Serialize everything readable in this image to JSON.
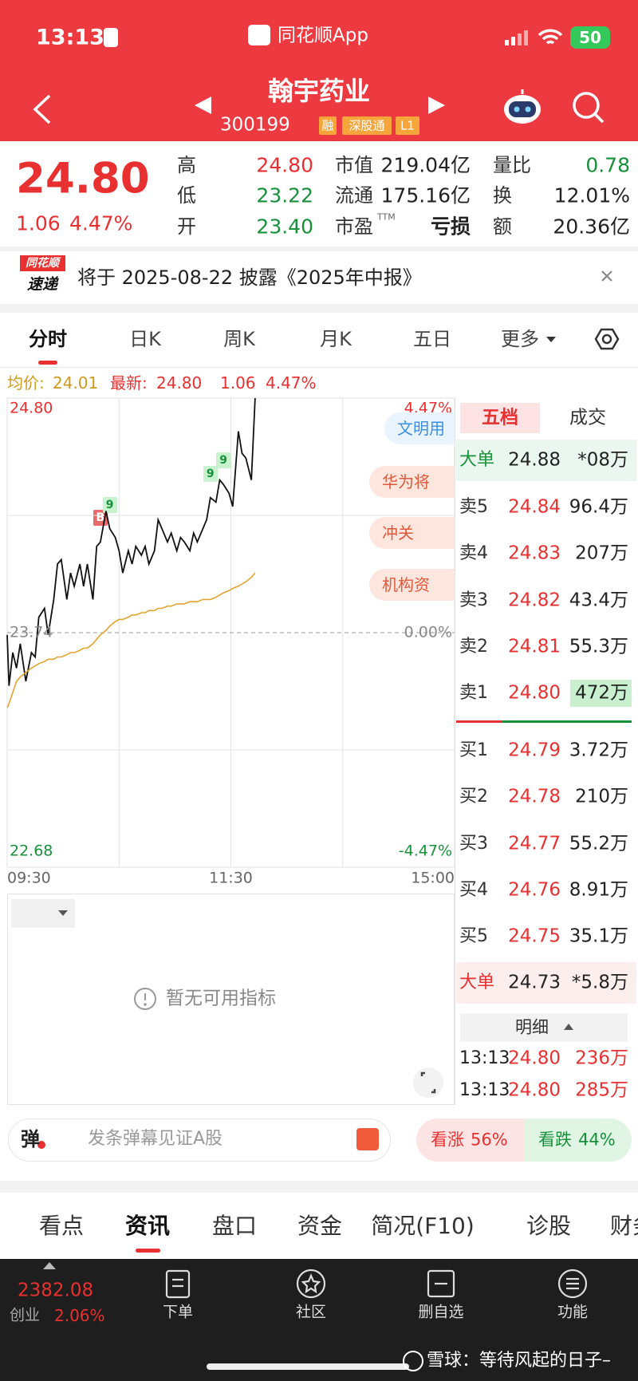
{
  "status": {
    "time": "13:13",
    "app": "同花顺App",
    "battery": "50"
  },
  "header": {
    "name": "翰宇药业",
    "code": "300199",
    "tags": [
      "融",
      "深股通",
      "L1"
    ]
  },
  "quote": {
    "price": "24.80",
    "change": "1.06",
    "pct": "4.47%",
    "stats": [
      [
        {
          "label": "高",
          "value": "24.80",
          "color": "#e93030"
        },
        {
          "label": "低",
          "value": "23.22",
          "color": "#17913a"
        },
        {
          "label": "开",
          "value": "23.40",
          "color": "#17913a"
        }
      ],
      [
        {
          "label": "市值",
          "value": "219.04亿",
          "color": "#222222"
        },
        {
          "label": "流通",
          "value": "175.16亿",
          "color": "#222222"
        },
        {
          "label": "市盈",
          "sup": "TTM",
          "value": "亏损",
          "color": "#222222"
        }
      ],
      [
        {
          "label": "量比",
          "value": "0.78",
          "color": "#17913a"
        },
        {
          "label": "换",
          "value": "12.01%",
          "color": "#222222"
        },
        {
          "label": "额",
          "value": "20.36亿",
          "color": "#222222"
        }
      ]
    ]
  },
  "banner": {
    "logo_top": "同花顺",
    "logo_bottom": "速递",
    "text": "将于 2025-08-22 披露《2025年中报》"
  },
  "tabs": [
    "分时",
    "日K",
    "周K",
    "月K",
    "五日",
    "更多"
  ],
  "info": {
    "avg_label": "均价:",
    "avg": "24.01",
    "last_label": "最新:",
    "last": "24.80",
    "change": "1.06",
    "pct": "4.47%"
  },
  "chart_data": {
    "type": "line",
    "x": [
      "09:30",
      "09:31",
      "09:33",
      "09:35",
      "09:37",
      "09:40",
      "09:43",
      "09:45",
      "09:47",
      "09:50",
      "09:52",
      "09:55",
      "09:57",
      "09:59",
      "10:02",
      "10:04",
      "10:06",
      "10:09",
      "10:11",
      "10:13",
      "10:16",
      "10:18",
      "10:20",
      "10:23",
      "10:25",
      "10:28",
      "10:30",
      "10:32",
      "10:35",
      "10:37",
      "10:39",
      "10:42",
      "10:44",
      "10:46",
      "10:49",
      "10:51",
      "10:53",
      "10:56",
      "10:58",
      "11:01",
      "11:03",
      "11:05",
      "11:08",
      "11:10",
      "11:12",
      "11:15",
      "11:17",
      "11:19",
      "11:22",
      "11:24",
      "11:26",
      "11:29",
      "13:01",
      "13:04",
      "13:06",
      "13:08",
      "13:11",
      "13:13"
    ],
    "series": [
      {
        "color": "#111111",
        "values": [
          23.73,
          23.5,
          23.65,
          23.58,
          23.69,
          23.52,
          23.65,
          23.63,
          23.81,
          23.85,
          23.73,
          23.89,
          24.05,
          24.07,
          23.89,
          24.01,
          23.95,
          24.05,
          23.95,
          24.05,
          23.89,
          24.13,
          24.15,
          24.29,
          24.21,
          24.17,
          24.11,
          24.01,
          24.11,
          24.05,
          24.13,
          24.09,
          24.13,
          24.05,
          24.11,
          24.25,
          24.21,
          24.15,
          24.19,
          24.11,
          24.17,
          24.15,
          24.11,
          24.19,
          24.15,
          24.21,
          24.25,
          24.35,
          24.33,
          24.43,
          24.41,
          24.37,
          24.31,
          24.65,
          24.55,
          24.53,
          24.43,
          24.8
        ]
      },
      {
        "color": "#e2a531",
        "values": [
          23.4,
          23.42,
          23.47,
          23.52,
          23.54,
          23.56,
          23.58,
          23.59,
          23.6,
          23.61,
          23.62,
          23.62,
          23.63,
          23.63,
          23.64,
          23.65,
          23.65,
          23.66,
          23.67,
          23.67,
          23.69,
          23.71,
          23.73,
          23.75,
          23.77,
          23.79,
          23.8,
          23.8,
          23.81,
          23.82,
          23.82,
          23.83,
          23.83,
          23.84,
          23.84,
          23.85,
          23.85,
          23.86,
          23.86,
          23.87,
          23.87,
          23.87,
          23.88,
          23.88,
          23.88,
          23.89,
          23.89,
          23.89,
          23.9,
          23.91,
          23.92,
          23.93,
          23.94,
          23.95,
          23.96,
          23.97,
          23.99,
          24.01
        ]
      }
    ],
    "ylim": [
      22.68,
      24.8
    ],
    "yticks": [
      {
        "value": 24.8,
        "label": "24.80"
      },
      {
        "value": 23.74,
        "label": "23.74"
      },
      {
        "value": 22.68,
        "label": "22.68"
      }
    ],
    "y2lim": [
      -4.47,
      4.47
    ],
    "y2ticks": [
      {
        "value": 4.47,
        "label": "4.47%"
      },
      {
        "value": 0,
        "label": "0.00%"
      },
      {
        "value": -4.47,
        "label": "-4.47%"
      }
    ],
    "xticks": [
      "09:30",
      "11:30",
      "15:00"
    ],
    "signals": [
      {
        "x": "10:20",
        "label": "B"
      },
      {
        "x": "10:25",
        "label": "9"
      },
      {
        "x": "11:19",
        "label": "9"
      },
      {
        "x": "11:26",
        "label": "9"
      }
    ]
  },
  "chips": [
    "文明用",
    "华为将",
    "冲关",
    "机构资"
  ],
  "order_book": {
    "tabs": [
      "五档",
      "成交"
    ],
    "rows": [
      {
        "label": "大单",
        "price": "24.88",
        "volume": "*08万",
        "color": "#222222"
      },
      {
        "label": "卖5",
        "price": "24.84",
        "volume": "96.4万",
        "color": "#e93030"
      },
      {
        "label": "卖4",
        "price": "24.83",
        "volume": "207万",
        "color": "#e93030"
      },
      {
        "label": "卖3",
        "price": "24.82",
        "volume": "43.4万",
        "color": "#e93030"
      },
      {
        "label": "卖2",
        "price": "24.81",
        "volume": "55.3万",
        "color": "#e93030"
      },
      {
        "label": "卖1",
        "price": "24.80",
        "volume": "472万",
        "color": "#e93030"
      },
      {
        "label": "买1",
        "price": "24.79",
        "volume": "3.72万",
        "color": "#e93030"
      },
      {
        "label": "买2",
        "price": "24.78",
        "volume": "210万",
        "color": "#e93030"
      },
      {
        "label": "买3",
        "price": "24.77",
        "volume": "55.2万",
        "color": "#e93030"
      },
      {
        "label": "买4",
        "price": "24.76",
        "volume": "8.91万",
        "color": "#e93030"
      },
      {
        "label": "买5",
        "price": "24.75",
        "volume": "35.1万",
        "color": "#e93030"
      },
      {
        "label": "大单",
        "price": "24.73",
        "volume": "*5.8万",
        "color": "#222222"
      }
    ]
  },
  "detail": {
    "title": "明细",
    "rows": [
      [
        "13:13",
        "24.80",
        "236万"
      ],
      [
        "13:13",
        "24.80",
        "285万"
      ]
    ]
  },
  "indicator": {
    "empty": "暂无可用指标"
  },
  "danmu": {
    "icon": "弹",
    "placeholder": "发条弹幕见证A股",
    "up_label": "看涨",
    "up": "56%",
    "down_label": "看跌",
    "down": "44%"
  },
  "bottom_tabs": [
    "看点",
    "资讯",
    "盘口",
    "资金",
    "简况(F10)",
    "诊股",
    "财务"
  ],
  "dock": {
    "index_value": "2382.08",
    "index_name": "创业",
    "index_pct": "2.06%",
    "items": [
      "下单",
      "社区",
      "删自选",
      "功能"
    ],
    "watermark": "雪球：等待风起的日子–"
  }
}
